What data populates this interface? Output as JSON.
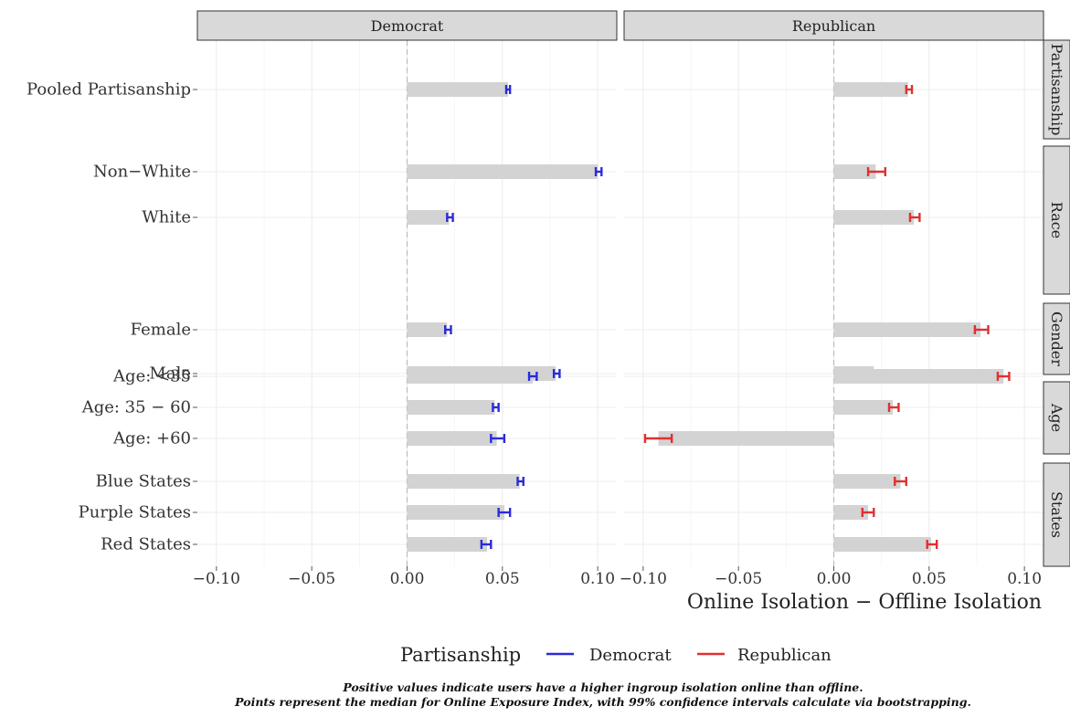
{
  "chart_data": {
    "type": "bar",
    "facets": [
      "Democrat",
      "Republican"
    ],
    "x_ticks": [
      "−0.10",
      "−0.05",
      "0.00",
      "0.05",
      "0.10"
    ],
    "x_tick_values": [
      -0.1,
      -0.05,
      0.0,
      0.05,
      0.1
    ],
    "xlim": [
      -0.11,
      0.11
    ],
    "xlabel": "Online Isolation − Offline Isolation",
    "groups": [
      {
        "name": "Partisanship",
        "categories": [
          "Pooled Partisanship"
        ]
      },
      {
        "name": "Race",
        "categories": [
          "Non−White",
          "White"
        ]
      },
      {
        "name": "Gender",
        "categories": [
          "Female",
          "Male"
        ]
      },
      {
        "name": "Age",
        "categories": [
          "Age: <35",
          "Age: 35 − 60",
          "Age: +60"
        ]
      },
      {
        "name": "States",
        "categories": [
          "Blue States",
          "Purple States",
          "Red States"
        ]
      }
    ],
    "series": [
      {
        "name": "Democrat",
        "color": "#2b2bd9",
        "values": [
          0.053,
          0.1,
          0.022,
          0.021,
          0.078,
          0.066,
          0.046,
          0.047,
          0.059,
          0.051,
          0.042
        ],
        "ci_low": [
          0.052,
          0.099,
          0.021,
          0.02,
          0.077,
          0.064,
          0.045,
          0.044,
          0.058,
          0.048,
          0.039
        ],
        "ci_high": [
          0.054,
          0.102,
          0.024,
          0.023,
          0.08,
          0.068,
          0.048,
          0.051,
          0.061,
          0.054,
          0.044
        ]
      },
      {
        "name": "Republican",
        "color": "#e03030",
        "values": [
          0.039,
          0.022,
          0.042,
          0.077,
          0.021,
          0.089,
          0.031,
          -0.092,
          0.035,
          0.018,
          0.051
        ],
        "ci_low": [
          0.038,
          0.018,
          0.04,
          0.074,
          0.019,
          0.086,
          0.029,
          -0.099,
          0.032,
          0.015,
          0.049
        ],
        "ci_high": [
          0.041,
          0.027,
          0.045,
          0.081,
          0.024,
          0.092,
          0.034,
          -0.085,
          0.038,
          0.021,
          0.054
        ]
      }
    ],
    "legend": {
      "title": "Partisanship",
      "position": "bottom"
    },
    "bar_color": "#d3d3d3",
    "grid": true,
    "captions": [
      "Positive values indicate users have a higher ingroup isolation online than offline.",
      "Points represent the median for Online Exposure Index, with 99% confidence intervals calculate via bootstrapping."
    ]
  }
}
